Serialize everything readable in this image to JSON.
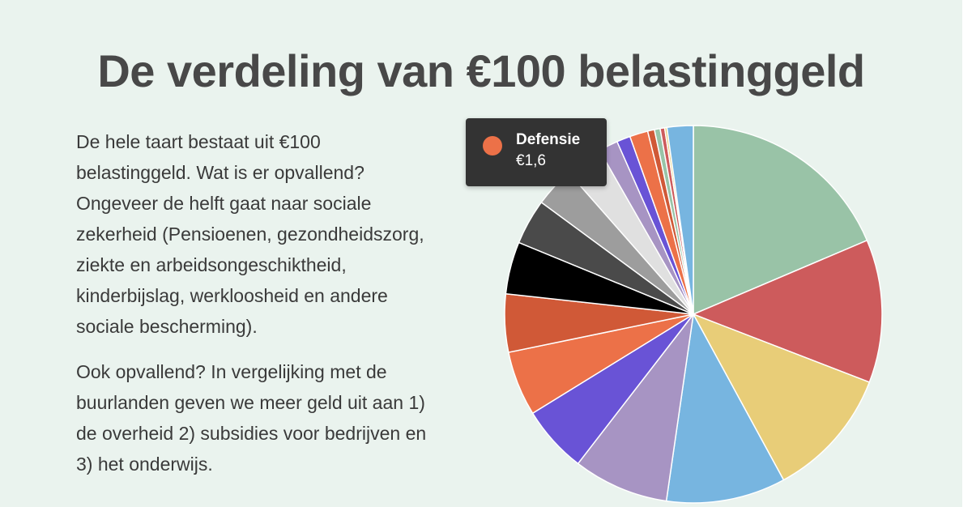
{
  "title": "De verdeling van €100 belastinggeld",
  "paragraphs": [
    "De hele taart bestaat uit €100 belastinggeld. Wat is er opvallend? Ongeveer de helft gaat naar sociale zekerheid (Pensioenen, gezondheidszorg, ziekte en arbeidsongeschiktheid, kinderbijslag, werkloosheid en andere sociale bescherming).",
    "Ook opvallend? In vergelijking met de buurlanden geven we meer geld uit aan 1) de overheid 2) subsidies voor bedrijven en 3) het onderwijs."
  ],
  "tooltip": {
    "label": "Defensie",
    "value": "€1,6",
    "color": "#ec7148"
  },
  "chart_data": {
    "type": "pie",
    "title": "",
    "slices": [
      {
        "value": 19.1,
        "color": "#99c3a7"
      },
      {
        "value": 12.6,
        "color": "#cd5b5c"
      },
      {
        "value": 11.5,
        "color": "#e8cd78"
      },
      {
        "value": 10.5,
        "color": "#77b5e0"
      },
      {
        "value": 8.4,
        "color": "#a794c3"
      },
      {
        "value": 5.9,
        "color": "#6953d6"
      },
      {
        "value": 5.7,
        "color": "#ec7148"
      },
      {
        "value": 5.1,
        "color": "#d05937"
      },
      {
        "value": 4.6,
        "color": "#000000"
      },
      {
        "value": 4.0,
        "color": "#4a4a4a"
      },
      {
        "value": 3.5,
        "color": "#9d9d9d"
      },
      {
        "value": 3.3,
        "color": "#e0e0e0"
      },
      {
        "value": 1.7,
        "color": "#a794c3"
      },
      {
        "value": 1.2,
        "color": "#6953d6"
      },
      {
        "value": 1.6,
        "color": "#ec7148"
      },
      {
        "value": 0.6,
        "color": "#d05937"
      },
      {
        "value": 0.5,
        "color": "#99c3a7"
      },
      {
        "value": 0.4,
        "color": "#cd5b5c"
      },
      {
        "value": 0.2,
        "color": "#e8cd78"
      },
      {
        "value": 2.3,
        "color": "#77b5e0"
      }
    ]
  }
}
